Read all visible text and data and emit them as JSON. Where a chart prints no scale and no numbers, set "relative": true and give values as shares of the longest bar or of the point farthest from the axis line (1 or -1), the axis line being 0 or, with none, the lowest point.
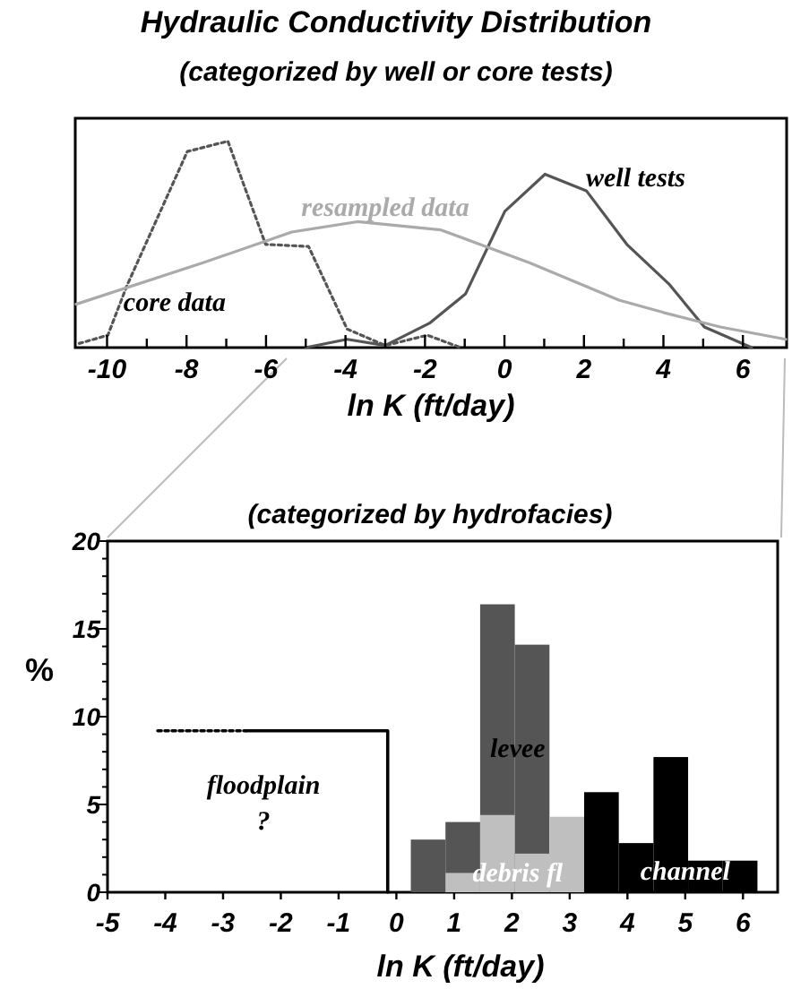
{
  "chart_data": [
    {
      "type": "line",
      "title": "Hydraulic Conductivity Distribution",
      "subtitle": "(categorized by well or core tests)",
      "xlabel": "ln K (ft/day)",
      "relative": true,
      "tick_labels": "x",
      "marker": "none",
      "xlim": [
        -10.8,
        7.1
      ],
      "xticks": [
        -10,
        {
          "value": -9,
          "label": null
        },
        -8,
        {
          "value": -7,
          "label": null
        },
        -6,
        {
          "value": -5,
          "label": null
        },
        -4,
        {
          "value": -3,
          "label": null
        },
        -2,
        {
          "value": -1,
          "label": null
        },
        0,
        {
          "value": 1,
          "label": null
        },
        2,
        {
          "value": 3,
          "label": null
        },
        4,
        {
          "value": 5,
          "label": null
        },
        6
      ],
      "series": [
        {
          "name": "core data",
          "color": "#555555",
          "line_style": "dotted",
          "x": [
            -10.7,
            -9.98,
            -9.5,
            -7.98,
            -6.96,
            -6.01,
            -4.93,
            -3.96,
            -3.0,
            -1.94,
            -1.1
          ],
          "values": [
            0.02,
            0.06,
            0.3,
            0.95,
            1.0,
            0.5,
            0.49,
            0.09,
            0.01,
            0.06,
            0
          ]
        },
        {
          "name": "well tests",
          "color": "#555555",
          "line_style": "solid",
          "x": [
            -5.0,
            -3.96,
            -3.0,
            -1.87,
            -0.98,
            0.01,
            1.02,
            2.06,
            3.08,
            4.13,
            5.03,
            6.22
          ],
          "values": [
            0,
            0.04,
            0.01,
            0.12,
            0.26,
            0.66,
            0.84,
            0.76,
            0.5,
            0.31,
            0.1,
            0
          ]
        },
        {
          "name": "resampled data",
          "color": "#aaaaaa",
          "line_style": "solid",
          "x": [
            -10.78,
            -7.6,
            -5.35,
            -3.7,
            -1.6,
            0.64,
            2.88,
            4.0,
            5.43,
            7.08
          ],
          "values": [
            0.21,
            0.41,
            0.56,
            0.61,
            0.57,
            0.41,
            0.23,
            0.17,
            0.1,
            0.04
          ]
        }
      ]
    },
    {
      "type": "histogram",
      "title": "(categorized by hydrofacies)",
      "xlabel": "ln K (ft/day)",
      "ylabel": "%",
      "annotations": [
        "?"
      ],
      "xlim": [
        -5,
        6.6
      ],
      "xticks": [
        -5,
        -4,
        -3,
        -2,
        -1,
        0,
        1,
        2,
        3,
        4,
        5,
        6
      ],
      "ylim": [
        0,
        20
      ],
      "yticks": [
        0,
        {
          "value": 1,
          "label": null
        },
        {
          "value": 2,
          "label": null
        },
        {
          "value": 3,
          "label": null
        },
        {
          "value": 4,
          "label": null
        },
        5,
        {
          "value": 6,
          "label": null
        },
        {
          "value": 7,
          "label": null
        },
        {
          "value": 8,
          "label": null
        },
        {
          "value": 9,
          "label": null
        },
        10,
        {
          "value": 11,
          "label": null
        },
        {
          "value": 12,
          "label": null
        },
        {
          "value": 13,
          "label": null
        },
        {
          "value": 14,
          "label": null
        },
        15,
        {
          "value": 16,
          "label": null
        },
        {
          "value": 17,
          "label": null
        },
        {
          "value": 18,
          "label": null
        },
        {
          "value": 19,
          "label": null
        },
        20
      ],
      "series": [
        {
          "name": "floodplain",
          "type": "line",
          "color": "#000000",
          "line_style": "solid",
          "x": [
            -2.6,
            -0.15,
            -0.15
          ],
          "values": [
            9.2,
            9.2,
            0
          ]
        },
        {
          "type": "line",
          "color": "#000000",
          "line_style": "dotted",
          "x": [
            -4.13,
            -2.6
          ],
          "values": [
            9.2,
            9.2
          ]
        },
        {
          "name": "levee",
          "color": "#555555",
          "bins": [
            0.25,
            0.85,
            1.45,
            2.05,
            2.65
          ],
          "values": [
            3.0,
            4.0,
            16.4,
            14.1
          ]
        },
        {
          "name": "debris fl",
          "color": "#bfbfbf",
          "bins": [
            0.85,
            1.45,
            2.05,
            2.65,
            3.25
          ],
          "values": [
            1.1,
            4.4,
            2.2,
            4.3
          ]
        },
        {
          "name": "channel",
          "color": "#000000",
          "bins": [
            3.25,
            3.85,
            4.45,
            5.05,
            5.65,
            6.25
          ],
          "values": [
            5.7,
            2.8,
            7.7,
            1.8,
            1.8
          ]
        }
      ]
    }
  ]
}
